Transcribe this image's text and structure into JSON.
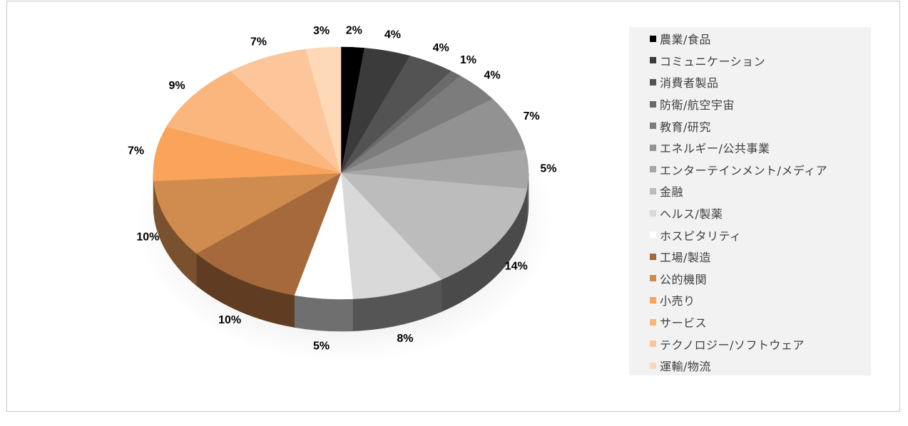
{
  "chart_data": {
    "type": "pie",
    "title": "",
    "legend_position": "right",
    "slices": [
      {
        "label": "農業/食品",
        "value": 2,
        "display": "2%",
        "color": "#000000"
      },
      {
        "label": "コミュニケーション",
        "value": 4,
        "display": "4%",
        "color": "#3b3b3b"
      },
      {
        "label": "消費者製品",
        "value": 4,
        "display": "4%",
        "color": "#535353"
      },
      {
        "label": "防衛/航空宇宙",
        "value": 1,
        "display": "1%",
        "color": "#6b6b6b"
      },
      {
        "label": "教育/研究",
        "value": 4,
        "display": "4%",
        "color": "#7c7c7c"
      },
      {
        "label": "エネルギー/公共事業",
        "value": 7,
        "display": "7%",
        "color": "#929292"
      },
      {
        "label": "エンターテインメント/メディア",
        "value": 5,
        "display": "5%",
        "color": "#a6a6a6"
      },
      {
        "label": "金融",
        "value": 14,
        "display": "14%",
        "color": "#bcbcbc"
      },
      {
        "label": "ヘルス/製薬",
        "value": 8,
        "display": "8%",
        "color": "#d9d9d9"
      },
      {
        "label": "ホスピタリティ",
        "value": 5,
        "display": "5%",
        "color": "#ffffff"
      },
      {
        "label": "工場/製造",
        "value": 10,
        "display": "10%",
        "color": "#a5693b"
      },
      {
        "label": "公的機関",
        "value": 10,
        "display": "10%",
        "color": "#d08b4f"
      },
      {
        "label": "小売り",
        "value": 7,
        "display": "7%",
        "color": "#f9a35b"
      },
      {
        "label": "サービス",
        "value": 9,
        "display": "9%",
        "color": "#fbb67d"
      },
      {
        "label": "テクノロジー/ソフトウェア",
        "value": 7,
        "display": "7%",
        "color": "#fcc69a"
      },
      {
        "label": "運輸/物流",
        "value": 3,
        "display": "3%",
        "color": "#fdd9b8"
      }
    ]
  }
}
